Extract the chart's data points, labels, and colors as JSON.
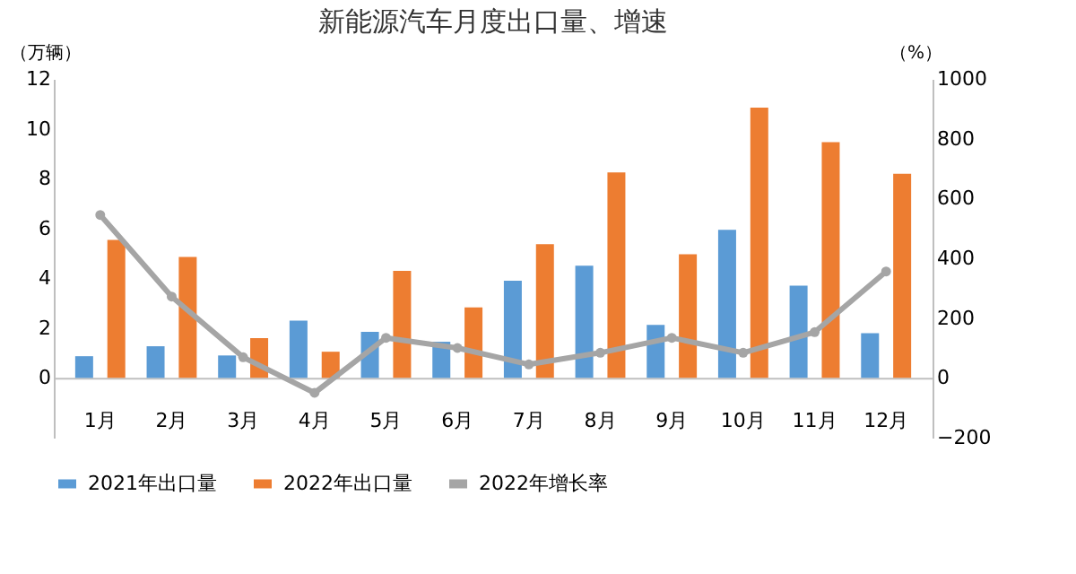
{
  "chart_data": {
    "type": "bar",
    "title": "新能源汽车月度出口量、增速",
    "ylabel": "（万辆）",
    "y2label": "（%）",
    "categories": [
      "1月",
      "2月",
      "3月",
      "4月",
      "5月",
      "6月",
      "7月",
      "8月",
      "9月",
      "10月",
      "11月",
      "12月"
    ],
    "series": [
      {
        "name": "2021年出口量",
        "color": "#5b9bd5",
        "values": [
          0.87,
          1.27,
          0.9,
          2.3,
          1.85,
          1.45,
          3.9,
          4.5,
          2.13,
          5.94,
          3.7,
          1.79
        ]
      },
      {
        "name": "2022年出口量",
        "color": "#ed7d31",
        "values": [
          5.54,
          4.85,
          1.6,
          1.05,
          4.3,
          2.83,
          5.37,
          8.25,
          4.96,
          10.85,
          9.46,
          8.19
        ]
      },
      {
        "name": "2022年增长率",
        "color": "#a5a5a5",
        "type": "line",
        "axis": "y2",
        "marker": "circle",
        "values": [
          545,
          272,
          69,
          -50,
          134,
          100,
          45,
          84,
          134,
          84,
          153,
          356
        ]
      }
    ],
    "ylim": [
      -2.4,
      12
    ],
    "yticks": [
      0,
      2,
      4,
      6,
      8,
      10,
      12
    ],
    "y2lim": [
      -200,
      1000
    ],
    "y2ticks": [
      -200,
      0,
      200,
      400,
      600,
      800,
      1000
    ],
    "grid": false,
    "legend": "bottom"
  }
}
